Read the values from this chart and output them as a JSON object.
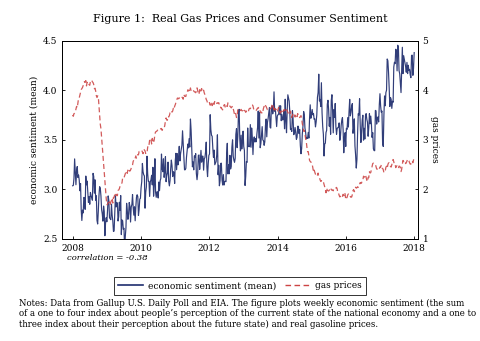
{
  "title_bold": "Figure 1:",
  "title_normal": "  Real Gas Prices and Consumer Sentiment",
  "ylabel_left": "economic sentiment (mean)",
  "ylabel_right": "gas prices",
  "ylim_left": [
    2.5,
    4.5
  ],
  "ylim_right": [
    1.0,
    5.0
  ],
  "yticks_left": [
    2.5,
    3.0,
    3.5,
    4.0,
    4.5
  ],
  "yticks_right": [
    1,
    2,
    3,
    4,
    5
  ],
  "xticks": [
    2008,
    2010,
    2012,
    2014,
    2016,
    2018
  ],
  "xlim": [
    2007.7,
    2018.1
  ],
  "sentiment_color": "#1f2d6e",
  "gas_color": "#cc4444",
  "correlation_text": "correlation = -0.38",
  "legend_sentiment": "economic sentiment (mean)",
  "legend_gas": "gas prices",
  "background_color": "#ffffff",
  "notes_bold": "Notes:",
  "notes_rest": " Data from Gallup U.S. Daily Poll and EIA. The figure plots weekly economic sentiment (the sum of a one to four index about people’s perception of the current state of the national economy and a one to three index about their perception about the future state) and real gasoline prices."
}
